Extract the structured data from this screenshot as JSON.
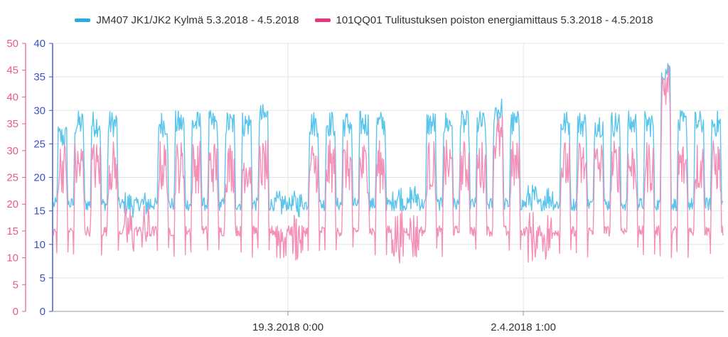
{
  "chart_data": {
    "type": "line",
    "title": "",
    "x_range": [
      "5.3.2018",
      "4.5.2018"
    ],
    "x_ticks": [
      "19.3.2018 0:00",
      "2.4.2018 1:00"
    ],
    "x_tick_dates": [
      "2018-03-19T00:00",
      "2018-04-02T01:00"
    ],
    "x_domain": [
      "2018-03-05T00:00",
      "2018-04-14T00:00"
    ],
    "y_axis_left_outer": {
      "ticks": [
        0,
        5,
        10,
        15,
        20,
        25,
        30,
        35,
        40,
        45,
        50
      ],
      "range": [
        0,
        50
      ],
      "color": "#e8598f",
      "series": "101QQ01 Tulitustuksen poiston energiamittaus 5.3.2018 - 4.5.2018"
    },
    "y_axis_left_inner": {
      "ticks": [
        0,
        5,
        10,
        15,
        20,
        25,
        30,
        35,
        40
      ],
      "range": [
        0,
        40
      ],
      "color": "#3a54c4",
      "series": "JM407 JK1/JK2 Kylmä 5.3.2018 - 4.5.2018"
    },
    "grid": true,
    "legend_position": "top",
    "series": [
      {
        "name": "JM407 JK1/JK2 Kylmä 5.3.2018 - 4.5.2018",
        "color": "#5bc5ec",
        "legend_color": "#29abe2",
        "axis": "inner",
        "approx_pattern": "daily cycle between about 15 and 29, peaks near 38 around 26.3, 11.4 and 13.4",
        "day_levels": [
          26,
          28,
          28,
          28,
          16,
          16,
          28,
          28,
          28,
          28,
          28,
          28,
          29,
          16,
          16,
          28,
          28,
          28,
          28,
          28,
          17,
          17,
          28,
          28,
          28,
          28,
          30,
          28,
          17,
          17,
          28,
          28,
          28,
          28,
          28,
          28,
          36,
          28,
          28,
          28
        ],
        "night_level": 16
      },
      {
        "name": "101QQ01 Tulitustuksen poiston energiamittaus 5.3.2018 - 4.5.2018",
        "color": "#f48fb8",
        "legend_color": "#e8357f",
        "axis": "outer",
        "approx_pattern": "daily cycle between about 12 and 30, minima near 10, peaks near 44 around 26.3, 11.4 and 13.4",
        "day_levels": [
          27,
          27,
          27,
          27,
          15,
          15,
          27,
          27,
          27,
          27,
          27,
          27,
          27,
          14,
          14,
          27,
          27,
          27,
          27,
          27,
          14,
          14,
          27,
          27,
          27,
          27,
          32,
          27,
          14,
          14,
          27,
          27,
          27,
          27,
          27,
          27,
          42,
          27,
          27,
          27
        ],
        "night_level": 15
      }
    ]
  }
}
